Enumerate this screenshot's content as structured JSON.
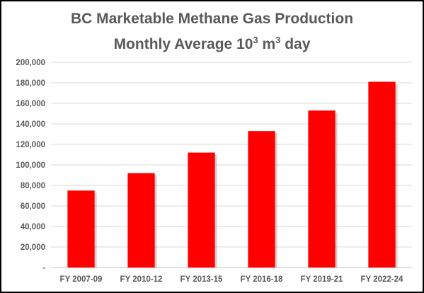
{
  "chart_data": {
    "type": "bar",
    "title_line1": "BC Marketable Methane Gas Production",
    "title_line2_prefix": "Monthly Average 10",
    "title_line2_sup1": "3",
    "title_line2_mid": " m",
    "title_line2_sup2": "3",
    "title_line2_suffix": " day",
    "categories": [
      "FY 2007-09",
      "FY 2010-12",
      "FY 2013-15",
      "FY 2016-18",
      "FY 2019-21",
      "FY 2022-24"
    ],
    "values": [
      75000,
      92000,
      112000,
      133000,
      153000,
      181000
    ],
    "ylim": [
      0,
      200000
    ],
    "y_ticks": [
      0,
      20000,
      40000,
      60000,
      80000,
      100000,
      120000,
      140000,
      160000,
      180000,
      200000
    ],
    "y_tick_labels": [
      "-",
      "20,000",
      "40,000",
      "60,000",
      "80,000",
      "100,000",
      "120,000",
      "140,000",
      "160,000",
      "180,000",
      "200,000"
    ],
    "grid": true,
    "legend": "none",
    "bar_color": "#ff0000",
    "grid_color": "#d9d9d9",
    "text_color": "#595959"
  }
}
